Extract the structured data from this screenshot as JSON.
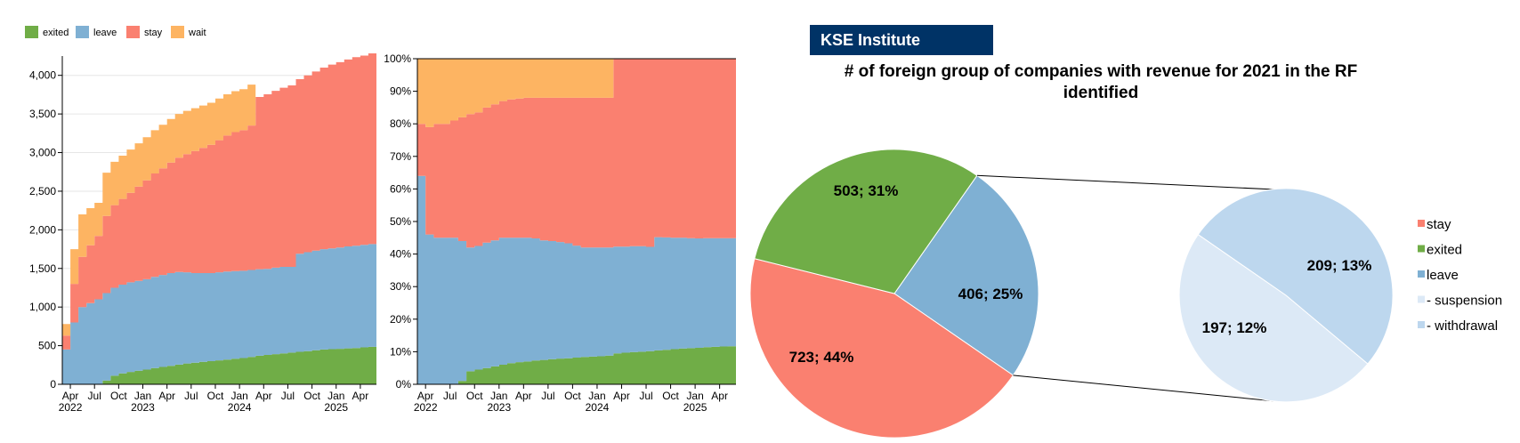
{
  "colors": {
    "exited": "#70ad47",
    "leave": "#7fb0d3",
    "stay": "#fa8070",
    "wait": "#fdb462",
    "suspension": "#dce9f6",
    "withdrawal": "#bdd7ee",
    "brand_bg": "#003366",
    "axis": "#000000"
  },
  "brand": {
    "label": "KSE Institute"
  },
  "legend_top": [
    {
      "key": "exited",
      "label": "exited"
    },
    {
      "key": "leave",
      "label": "leave"
    },
    {
      "key": "stay",
      "label": "stay"
    },
    {
      "key": "wait",
      "label": "wait"
    }
  ],
  "legend_right": [
    {
      "key": "stay",
      "label": "stay"
    },
    {
      "key": "exited",
      "label": "exited"
    },
    {
      "key": "leave",
      "label": "leave"
    },
    {
      "key": "suspension",
      "label": "- suspension"
    },
    {
      "key": "withdrawal",
      "label": "- withdrawal"
    }
  ],
  "chart_data": [
    {
      "type": "area",
      "stacked": true,
      "y_ticks": [
        "0",
        "500",
        "1,000",
        "1,500",
        "2,000",
        "2,500",
        "3,000",
        "3,500",
        "4,000"
      ],
      "ylim": [
        0,
        4250
      ],
      "x_ticks": [
        {
          "month": "Apr",
          "year": "2022"
        },
        {
          "month": "Jul",
          "year": ""
        },
        {
          "month": "Oct",
          "year": ""
        },
        {
          "month": "Jan",
          "year": "2023"
        },
        {
          "month": "Apr",
          "year": ""
        },
        {
          "month": "Jul",
          "year": ""
        },
        {
          "month": "Oct",
          "year": ""
        },
        {
          "month": "Jan",
          "year": "2024"
        },
        {
          "month": "Apr",
          "year": ""
        },
        {
          "month": "Jul",
          "year": ""
        },
        {
          "month": "Oct",
          "year": ""
        },
        {
          "month": "Jan",
          "year": "2025"
        },
        {
          "month": "Apr",
          "year": ""
        }
      ],
      "x": [
        "2022-03",
        "2022-04",
        "2022-05",
        "2022-06",
        "2022-07",
        "2022-08",
        "2022-09",
        "2022-10",
        "2022-11",
        "2022-12",
        "2023-01",
        "2023-02",
        "2023-03",
        "2023-04",
        "2023-05",
        "2023-06",
        "2023-07",
        "2023-08",
        "2023-09",
        "2023-10",
        "2023-11",
        "2023-12",
        "2024-01",
        "2024-02",
        "2024-03",
        "2024-04",
        "2024-05",
        "2024-06",
        "2024-07",
        "2024-08",
        "2024-09",
        "2024-10",
        "2024-11",
        "2024-12",
        "2025-01",
        "2025-02",
        "2025-03",
        "2025-04",
        "2025-05",
        "2025-06"
      ],
      "series": [
        {
          "name": "exited",
          "values": [
            0,
            0,
            0,
            0,
            0,
            50,
            110,
            140,
            160,
            175,
            190,
            210,
            225,
            240,
            255,
            270,
            280,
            290,
            300,
            310,
            320,
            330,
            340,
            355,
            370,
            380,
            390,
            400,
            410,
            420,
            430,
            440,
            450,
            455,
            460,
            465,
            470,
            478,
            485,
            490
          ]
        },
        {
          "name": "leave",
          "values": [
            450,
            800,
            1000,
            1050,
            1100,
            1130,
            1140,
            1150,
            1160,
            1165,
            1170,
            1180,
            1190,
            1200,
            1200,
            1180,
            1160,
            1150,
            1140,
            1140,
            1140,
            1135,
            1130,
            1125,
            1120,
            1115,
            1120,
            1120,
            1110,
            1270,
            1280,
            1290,
            1300,
            1305,
            1310,
            1320,
            1325,
            1328,
            1330,
            1330
          ]
        },
        {
          "name": "stay",
          "values": [
            180,
            500,
            650,
            750,
            820,
            1000,
            1070,
            1110,
            1160,
            1220,
            1280,
            1340,
            1380,
            1430,
            1480,
            1530,
            1580,
            1620,
            1660,
            1710,
            1760,
            1800,
            1820,
            1870,
            2230,
            2260,
            2290,
            2320,
            2350,
            2260,
            2290,
            2320,
            2350,
            2380,
            2400,
            2420,
            2440,
            2450,
            2470,
            2480
          ]
        },
        {
          "name": "wait",
          "values": [
            150,
            450,
            550,
            480,
            430,
            560,
            560,
            560,
            560,
            560,
            560,
            560,
            565,
            565,
            565,
            560,
            555,
            550,
            545,
            540,
            535,
            530,
            530,
            530,
            0,
            0,
            0,
            0,
            0,
            0,
            0,
            0,
            0,
            0,
            0,
            0,
            0,
            0,
            0,
            0
          ]
        }
      ]
    },
    {
      "type": "area",
      "stacked": true,
      "normalized": true,
      "y_ticks": [
        "0%",
        "10%",
        "20%",
        "30%",
        "40%",
        "50%",
        "60%",
        "70%",
        "80%",
        "90%",
        "100%"
      ],
      "ylim": [
        0,
        100
      ],
      "x_ticks": [
        {
          "month": "Apr",
          "year": "2022"
        },
        {
          "month": "Jul",
          "year": ""
        },
        {
          "month": "Oct",
          "year": ""
        },
        {
          "month": "Jan",
          "year": "2023"
        },
        {
          "month": "Apr",
          "year": ""
        },
        {
          "month": "Jul",
          "year": ""
        },
        {
          "month": "Oct",
          "year": ""
        },
        {
          "month": "Jan",
          "year": "2024"
        },
        {
          "month": "Apr",
          "year": ""
        },
        {
          "month": "Jul",
          "year": ""
        },
        {
          "month": "Oct",
          "year": ""
        },
        {
          "month": "Jan",
          "year": "2025"
        },
        {
          "month": "Apr",
          "year": ""
        }
      ],
      "x": [
        "2022-03",
        "2022-04",
        "2022-05",
        "2022-06",
        "2022-07",
        "2022-08",
        "2022-09",
        "2022-10",
        "2022-11",
        "2022-12",
        "2023-01",
        "2023-02",
        "2023-03",
        "2023-04",
        "2023-05",
        "2023-06",
        "2023-07",
        "2023-08",
        "2023-09",
        "2023-10",
        "2023-11",
        "2023-12",
        "2024-01",
        "2024-02",
        "2024-03",
        "2024-04",
        "2024-05",
        "2024-06",
        "2024-07",
        "2024-08",
        "2024-09",
        "2024-10",
        "2024-11",
        "2024-12",
        "2025-01",
        "2025-02",
        "2025-03",
        "2025-04",
        "2025-05",
        "2025-06"
      ],
      "series": [
        {
          "name": "exited",
          "values": [
            0,
            0,
            0,
            0,
            0,
            1,
            4,
            4.5,
            5,
            5.5,
            6,
            6.5,
            6.8,
            7,
            7.3,
            7.5,
            7.7,
            7.9,
            8,
            8.2,
            8.4,
            8.5,
            8.6,
            8.8,
            9.5,
            9.7,
            9.9,
            10,
            10.2,
            10.4,
            10.6,
            10.8,
            11,
            11.1,
            11.2,
            11.4,
            11.5,
            11.6,
            11.7,
            11.8
          ]
        },
        {
          "name": "leave",
          "values": [
            64,
            46,
            45,
            45,
            45,
            43,
            38,
            38,
            38.5,
            38.7,
            39,
            38.5,
            38.2,
            38,
            37.5,
            36.7,
            36.3,
            35.8,
            35.3,
            34.4,
            33.6,
            33.5,
            33.4,
            33.2,
            32.8,
            32.6,
            32.5,
            32.4,
            32,
            34.8,
            34.5,
            34.2,
            34,
            33.8,
            33.6,
            33.5,
            33.4,
            33.3,
            33.2,
            33.2
          ]
        },
        {
          "name": "stay",
          "values": [
            16,
            33,
            35,
            35,
            36,
            38,
            41,
            41,
            41.5,
            41.8,
            42,
            42.5,
            42.8,
            43,
            43.2,
            43.8,
            44,
            44.3,
            44.7,
            45.4,
            46,
            46,
            46,
            46,
            57.7,
            57.7,
            57.6,
            57.6,
            57.8,
            54.8,
            54.9,
            55,
            55,
            55.1,
            55.2,
            55.1,
            55.1,
            55.1,
            55.1,
            55
          ]
        },
        {
          "name": "wait",
          "values": [
            20,
            21,
            20,
            20,
            19,
            18,
            17,
            16.5,
            15,
            14,
            13,
            12.5,
            12.2,
            12,
            12,
            12,
            12,
            12,
            12,
            12,
            12,
            12,
            12,
            12,
            0,
            0,
            0,
            0,
            0,
            0,
            0,
            0,
            0,
            0,
            0,
            0,
            0,
            0,
            0,
            0
          ]
        }
      ]
    },
    {
      "type": "pie",
      "title": "# of foreign group of companies with revenue for 2021 in the RF identified",
      "slices": [
        {
          "name": "leave",
          "value": 406,
          "percent": 25,
          "label": "406; 25%"
        },
        {
          "name": "stay",
          "value": 723,
          "percent": 44,
          "label": "723; 44%"
        },
        {
          "name": "exited",
          "value": 503,
          "percent": 31,
          "label": "503; 31%"
        }
      ]
    },
    {
      "type": "pie",
      "slices": [
        {
          "name": "withdrawal",
          "value": 209,
          "percent": 13,
          "label": "209; 13%"
        },
        {
          "name": "suspension",
          "value": 197,
          "percent": 12,
          "label": "197; 12%"
        }
      ]
    }
  ]
}
